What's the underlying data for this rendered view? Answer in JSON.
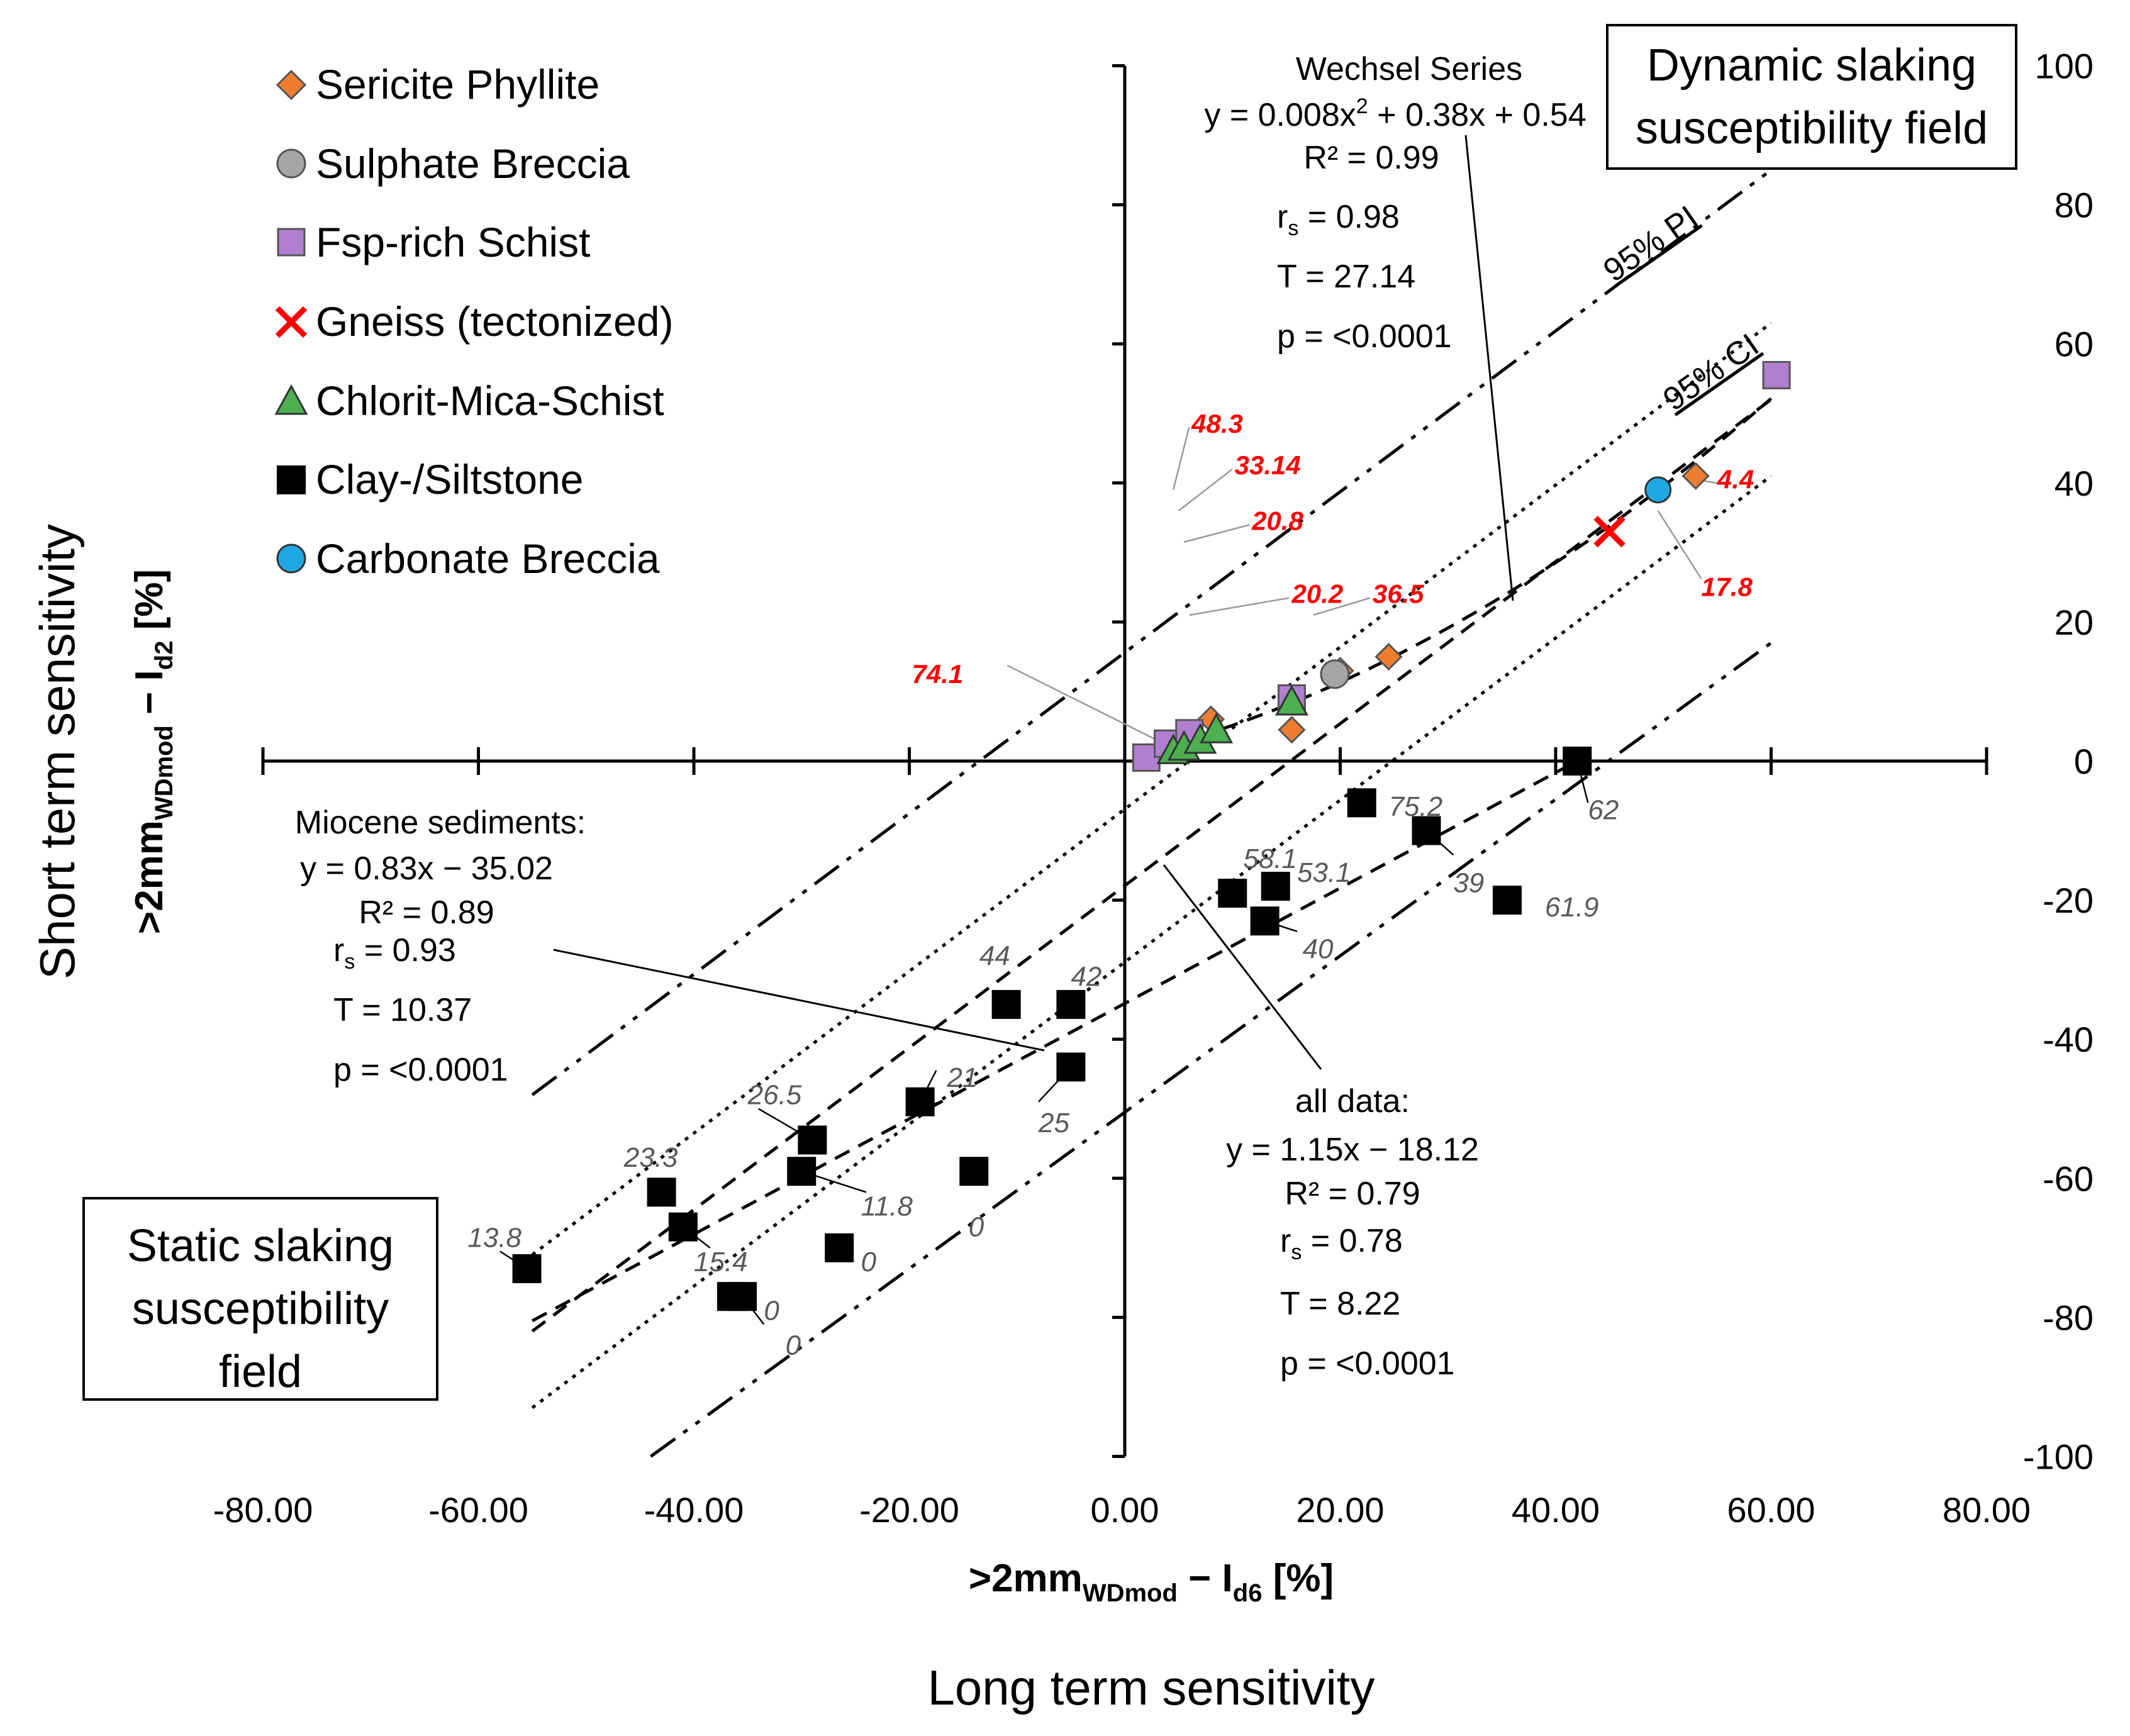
{
  "chart_data": {
    "type": "scatter",
    "xlabel": {
      "main": ">2mm",
      "sub": "WDmod",
      "rest": " − I",
      "sub2": "d6",
      "tail": " [%]"
    },
    "ylabel": {
      "main": ">2mm",
      "sub": "WDmod",
      "rest": " − I",
      "sub2": "d2",
      "tail": " [%]"
    },
    "x_caption": "Long term sensitivity",
    "y_caption": "Short term sensitivity",
    "xlim": [
      -80,
      80
    ],
    "ylim": [
      -100,
      100
    ],
    "x_ticks": [
      -80,
      -60,
      -40,
      -20,
      0,
      20,
      40,
      60,
      80
    ],
    "x_tick_labels": [
      "-80.00",
      "-60.00",
      "-40.00",
      "-20.00",
      "0.00",
      "20.00",
      "40.00",
      "60.00",
      "80.00"
    ],
    "y_ticks": [
      100,
      80,
      60,
      40,
      20,
      0,
      -20,
      -40,
      -60,
      -80,
      -100
    ],
    "y_tick_labels": [
      "100",
      "80",
      "60",
      "40",
      "20",
      "0",
      "-20",
      "-40",
      "-60",
      "-80",
      "-100"
    ],
    "legend": [
      {
        "name": "Sericite Phyllite",
        "marker": "diamond",
        "color": "#ED7D31"
      },
      {
        "name": "Sulphate Breccia",
        "marker": "circle",
        "color": "#A5A5A5"
      },
      {
        "name": "Fsp-rich Schist",
        "marker": "square",
        "color": "#B07FCF"
      },
      {
        "name": "Gneiss (tectonized)",
        "marker": "x",
        "color": "#FF0000"
      },
      {
        "name": "Chlorit-Mica-Schist",
        "marker": "triangle",
        "color": "#4CAF50"
      },
      {
        "name": "Clay-/Siltstone",
        "marker": "square",
        "color": "#000000"
      },
      {
        "name": "Carbonate Breccia",
        "marker": "circle",
        "color": "#1FA7E1"
      }
    ],
    "series": [
      {
        "name": "Sericite Phyllite",
        "points": [
          [
            8,
            6
          ],
          [
            15.5,
            4.5
          ],
          [
            20,
            13
          ],
          [
            24.5,
            15
          ],
          [
            53,
            41
          ]
        ]
      },
      {
        "name": "Sulphate Breccia",
        "points": [
          [
            19.5,
            12.5
          ]
        ]
      },
      {
        "name": "Fsp-rich Schist",
        "points": [
          [
            2,
            0.5
          ],
          [
            4,
            2.5
          ],
          [
            6,
            4
          ],
          [
            15.5,
            9
          ],
          [
            60.5,
            55.5
          ]
        ]
      },
      {
        "name": "Gneiss (tectonized)",
        "points": [
          [
            45,
            33
          ]
        ]
      },
      {
        "name": "Chlorit-Mica-Schist",
        "points": [
          [
            4.5,
            1.5
          ],
          [
            5.5,
            2
          ],
          [
            7,
            3
          ],
          [
            8.5,
            4.5
          ],
          [
            15.5,
            8.5
          ]
        ]
      },
      {
        "name": "Clay-/Siltstone",
        "points": [
          [
            -55.5,
            -73
          ],
          [
            -43,
            -62
          ],
          [
            -41,
            -67
          ],
          [
            -29,
            -54.5
          ],
          [
            -30,
            -59
          ],
          [
            -36.5,
            -77
          ],
          [
            -35.5,
            -77
          ],
          [
            -26.5,
            -70
          ],
          [
            -19,
            -49
          ],
          [
            -14,
            -59
          ],
          [
            -11,
            -35
          ],
          [
            -5,
            -35
          ],
          [
            -5,
            -44
          ],
          [
            10,
            -19
          ],
          [
            14,
            -18
          ],
          [
            13,
            -23
          ],
          [
            22,
            -6
          ],
          [
            28,
            -10
          ],
          [
            35.5,
            -20
          ],
          [
            42,
            0
          ]
        ]
      },
      {
        "name": "Carbonate Breccia",
        "points": [
          [
            49.5,
            39
          ]
        ]
      }
    ],
    "point_labels_red": [
      {
        "text": "48.3",
        "x": 6.2,
        "y": 48.5,
        "tx": 4.5,
        "ty": 39
      },
      {
        "text": "33.14",
        "x": 10.2,
        "y": 42.5,
        "tx": 5,
        "ty": 36
      },
      {
        "text": "20.8",
        "x": 11.8,
        "y": 34.5,
        "tx": 5.5,
        "ty": 31.5
      },
      {
        "text": "20.2",
        "x": 15.5,
        "y": 24,
        "tx": 6,
        "ty": 21
      },
      {
        "text": "36.5",
        "x": 23,
        "y": 24,
        "tx": 17.5,
        "ty": 21
      },
      {
        "text": "74.1",
        "x": -15,
        "y": 12.5,
        "tx": 3,
        "ty": 3
      },
      {
        "text": "4.4",
        "x": 55,
        "y": 40.5,
        "tx": 53,
        "ty": 40.5
      },
      {
        "text": "17.8",
        "x": 53.5,
        "y": 25,
        "tx": 49.5,
        "ty": 36
      }
    ],
    "point_labels_grey": [
      {
        "text": "75.2",
        "x": 24.5,
        "y": -6.5
      },
      {
        "text": "62",
        "x": 43,
        "y": -7
      },
      {
        "text": "39",
        "x": 30.5,
        "y": -17.5
      },
      {
        "text": "61.9",
        "x": 39,
        "y": -21
      },
      {
        "text": "58.1",
        "x": 11,
        "y": -14
      },
      {
        "text": "53.1",
        "x": 16,
        "y": -16
      },
      {
        "text": "40",
        "x": 16.5,
        "y": -27
      },
      {
        "text": "44",
        "x": -13.5,
        "y": -28
      },
      {
        "text": "42",
        "x": -5,
        "y": -31
      },
      {
        "text": "21",
        "x": -16.5,
        "y": -45.5
      },
      {
        "text": "25",
        "x": -8,
        "y": -52
      },
      {
        "text": "26.5",
        "x": -35,
        "y": -48
      },
      {
        "text": "11.8",
        "x": -24.5,
        "y": -64
      },
      {
        "text": "0",
        "x": -14.5,
        "y": -67
      },
      {
        "text": "23.3",
        "x": -46.5,
        "y": -57
      },
      {
        "text": "15.4",
        "x": -40,
        "y": -72
      },
      {
        "text": "0",
        "x": -24.5,
        "y": -72
      },
      {
        "text": "13.8",
        "x": -61,
        "y": -68.5
      },
      {
        "text": "0",
        "x": -33.5,
        "y": -79
      },
      {
        "text": "0",
        "x": -31.5,
        "y": -84
      }
    ]
  },
  "legend_labels": [
    "Sericite Phyllite",
    "Sulphate Breccia",
    "Fsp-rich Schist",
    "Gneiss (tectonized)",
    "Chlorit-Mica-Schist",
    "Clay-/Siltstone",
    "Carbonate Breccia"
  ],
  "annotations": {
    "wechsel": {
      "title": "Wechsel Series",
      "eq": "y = 0.008x",
      "eq_sup": "2",
      "eq_rest": " + 0.38x + 0.54",
      "r2": "R² = 0.99",
      "rs_main": "r",
      "rs_sub": "s",
      "rs_val": " = 0.98",
      "t": "T = 27.14",
      "p": "p = <0.0001"
    },
    "miocene": {
      "title": "Miocene sediments:",
      "eq": "y = 0.83x − 35.02",
      "r2": "R² = 0.89",
      "rs_main": "r",
      "rs_sub": "s",
      "rs_val": " = 0.93",
      "t": "T = 10.37",
      "p": "p = <0.0001"
    },
    "alldata": {
      "title": "all data:",
      "eq": "y = 1.15x − 18.12",
      "r2": "R² = 0.79",
      "rs_main": "r",
      "rs_sub": "s",
      "rs_val": " = 0.78",
      "t": "T = 8.22",
      "p": "p = <0.0001"
    },
    "pi_label": "95% PI",
    "ci_label": "95% CI",
    "dynamic_box": [
      "Dynamic slaking",
      "susceptibility field"
    ],
    "static_box": [
      "Static slaking",
      "susceptibility",
      "field"
    ]
  }
}
